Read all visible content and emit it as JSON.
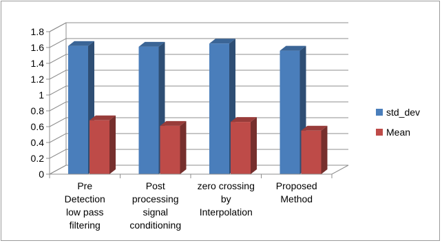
{
  "chart_data": {
    "type": "bar",
    "categories": [
      [
        "Pre",
        "Detection",
        "low pass",
        "filtering"
      ],
      [
        "Post",
        "processing",
        "signal",
        "conditioning"
      ],
      [
        "zero crossing",
        "by",
        "Interpolation"
      ],
      [
        "Proposed",
        "Method"
      ]
    ],
    "series": [
      {
        "name": "std_dev",
        "values": [
          1.62,
          1.61,
          1.65,
          1.56
        ],
        "color": "#4a7ebb"
      },
      {
        "name": "Mean",
        "values": [
          0.68,
          0.61,
          0.66,
          0.55
        ],
        "color": "#be4b48"
      }
    ],
    "ylim": [
      0,
      1.8
    ],
    "yticks": [
      "0",
      "0.2",
      "0.4",
      "0.6",
      "0.8",
      "1",
      "1.2",
      "1.4",
      "1.6",
      "1.8"
    ],
    "grid": true,
    "legend": "right",
    "style": "3d-clustered-column"
  }
}
